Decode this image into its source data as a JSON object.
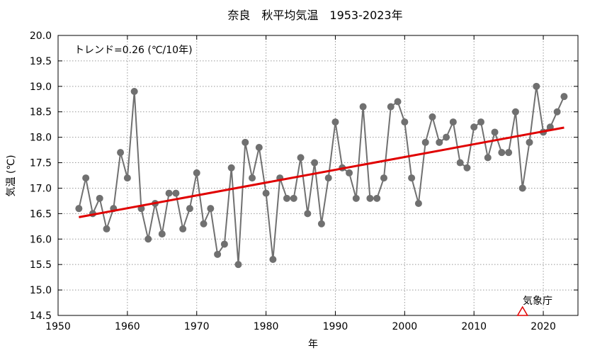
{
  "chart_data": {
    "type": "line",
    "title": "奈良　秋平均気温　1953-2023年",
    "xlabel": "年",
    "ylabel": "気温 (℃)",
    "xlim": [
      1950,
      2025
    ],
    "ylim": [
      14.5,
      20.0
    ],
    "x_ticks": [
      1950,
      1960,
      1970,
      1980,
      1990,
      2000,
      2010,
      2020
    ],
    "y_ticks": [
      14.5,
      15.0,
      15.5,
      16.0,
      16.5,
      17.0,
      17.5,
      18.0,
      18.5,
      19.0,
      19.5,
      20.0
    ],
    "grid": true,
    "trend_label": "トレンド=0.26 (℃/10年)",
    "source_label": "気象庁",
    "colors": {
      "series": "#707070",
      "trend": "#e00000",
      "marker": "#e00000"
    },
    "series": [
      {
        "x": [
          1953,
          1954,
          1955,
          1956,
          1957,
          1958,
          1959,
          1960,
          1961,
          1962,
          1963,
          1964,
          1965,
          1966,
          1967,
          1968,
          1969,
          1970,
          1971,
          1972,
          1973,
          1974,
          1975,
          1976,
          1977,
          1978,
          1979,
          1980,
          1981,
          1982,
          1983,
          1984,
          1985,
          1986,
          1987,
          1988,
          1989,
          1990,
          1991,
          1992,
          1993,
          1994,
          1995,
          1996,
          1997,
          1998,
          1999,
          2000,
          2001,
          2002,
          2003,
          2004,
          2005,
          2006,
          2007,
          2008,
          2009,
          2010,
          2011,
          2012,
          2013,
          2014,
          2015,
          2016,
          2017,
          2018,
          2019,
          2020,
          2021,
          2022,
          2023
        ],
        "values": [
          16.6,
          17.2,
          16.5,
          16.8,
          16.2,
          16.6,
          17.7,
          17.2,
          18.9,
          16.6,
          16.0,
          16.7,
          16.1,
          16.9,
          16.9,
          16.2,
          16.6,
          17.3,
          16.3,
          16.6,
          15.7,
          15.9,
          17.4,
          15.5,
          17.9,
          17.2,
          17.8,
          16.9,
          15.6,
          17.2,
          16.8,
          16.8,
          17.6,
          16.5,
          17.5,
          16.3,
          17.2,
          18.3,
          17.4,
          17.3,
          16.8,
          18.6,
          16.8,
          16.8,
          17.2,
          18.6,
          18.7,
          18.3,
          17.2,
          16.7,
          17.9,
          18.4,
          17.9,
          18.0,
          18.3,
          17.5,
          17.4,
          18.2,
          18.3,
          17.6,
          18.1,
          17.7,
          17.7,
          18.5,
          17.0,
          17.9,
          19.0,
          18.1,
          18.2,
          18.5,
          18.8
        ]
      }
    ],
    "trend": {
      "x": [
        1953,
        2023
      ],
      "values": [
        16.43,
        18.19
      ]
    },
    "marker": {
      "x": 2017,
      "y": 14.5,
      "shape": "triangle"
    }
  }
}
